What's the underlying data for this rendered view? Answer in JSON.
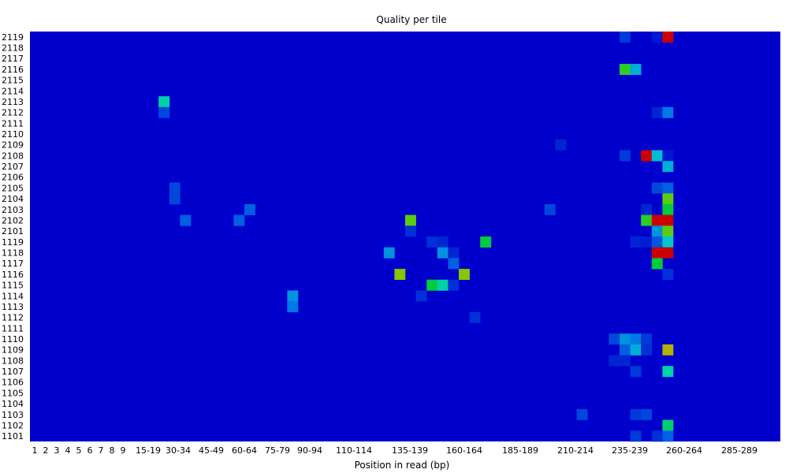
{
  "chart_data": {
    "type": "heatmap",
    "title": "Quality per tile",
    "xlabel": "Position in read (bp)",
    "ylabel": "",
    "x_tick_labels": [
      "1",
      "2",
      "3",
      "4",
      "5",
      "6",
      "7",
      "8",
      "9",
      "15-19",
      "30-34",
      "45-49",
      "60-64",
      "75-79",
      "90-94",
      "110-114",
      "135-139",
      "160-164",
      "185-189",
      "210-214",
      "235-239",
      "260-264",
      "285-289"
    ],
    "y_tick_labels": [
      "2119",
      "2118",
      "2117",
      "2116",
      "2115",
      "2114",
      "2113",
      "2112",
      "2111",
      "2110",
      "2109",
      "2108",
      "2107",
      "2106",
      "2105",
      "2104",
      "2103",
      "2102",
      "2101",
      "1119",
      "1118",
      "1117",
      "1116",
      "1115",
      "1114",
      "1113",
      "1112",
      "1111",
      "1110",
      "1109",
      "1108",
      "1107",
      "1106",
      "1105",
      "1104",
      "1103",
      "1102",
      "1101"
    ],
    "n_columns": 70,
    "value_range": [
      0,
      1
    ],
    "colors": {
      "low": "#0000cc",
      "high": "#cc0000"
    },
    "cells": [
      [
        0,
        55,
        0.12
      ],
      [
        0,
        58,
        0.05
      ],
      [
        0,
        59,
        1.0
      ],
      [
        3,
        55,
        0.6
      ],
      [
        3,
        56,
        0.35
      ],
      [
        6,
        12,
        0.45
      ],
      [
        7,
        12,
        0.15
      ],
      [
        7,
        58,
        0.08
      ],
      [
        7,
        59,
        0.25
      ],
      [
        10,
        49,
        0.08
      ],
      [
        11,
        55,
        0.12
      ],
      [
        11,
        57,
        1.0
      ],
      [
        11,
        58,
        0.38
      ],
      [
        11,
        59,
        0.05
      ],
      [
        12,
        59,
        0.35
      ],
      [
        14,
        13,
        0.15
      ],
      [
        14,
        58,
        0.15
      ],
      [
        14,
        59,
        0.2
      ],
      [
        15,
        13,
        0.15
      ],
      [
        15,
        59,
        0.65
      ],
      [
        16,
        20,
        0.2
      ],
      [
        16,
        48,
        0.15
      ],
      [
        16,
        57,
        0.08
      ],
      [
        16,
        59,
        0.55
      ],
      [
        17,
        14,
        0.2
      ],
      [
        17,
        19,
        0.2
      ],
      [
        17,
        35,
        0.65
      ],
      [
        17,
        57,
        0.6
      ],
      [
        17,
        58,
        1.0
      ],
      [
        17,
        59,
        1.0
      ],
      [
        18,
        35,
        0.1
      ],
      [
        18,
        58,
        0.3
      ],
      [
        18,
        59,
        0.65
      ],
      [
        19,
        37,
        0.1
      ],
      [
        19,
        38,
        0.08
      ],
      [
        19,
        42,
        0.55
      ],
      [
        19,
        56,
        0.08
      ],
      [
        19,
        57,
        0.06
      ],
      [
        19,
        58,
        0.18
      ],
      [
        19,
        59,
        0.4
      ],
      [
        20,
        33,
        0.3
      ],
      [
        20,
        38,
        0.3
      ],
      [
        20,
        39,
        0.08
      ],
      [
        20,
        58,
        1.0
      ],
      [
        20,
        59,
        1.0
      ],
      [
        21,
        39,
        0.2
      ],
      [
        21,
        58,
        0.55
      ],
      [
        22,
        34,
        0.7
      ],
      [
        22,
        40,
        0.7
      ],
      [
        22,
        59,
        0.1
      ],
      [
        23,
        37,
        0.55
      ],
      [
        23,
        38,
        0.45
      ],
      [
        23,
        39,
        0.1
      ],
      [
        24,
        24,
        0.3
      ],
      [
        24,
        36,
        0.1
      ],
      [
        25,
        24,
        0.25
      ],
      [
        26,
        41,
        0.1
      ],
      [
        28,
        54,
        0.15
      ],
      [
        28,
        55,
        0.3
      ],
      [
        28,
        56,
        0.25
      ],
      [
        28,
        57,
        0.12
      ],
      [
        29,
        55,
        0.2
      ],
      [
        29,
        56,
        0.35
      ],
      [
        29,
        57,
        0.1
      ],
      [
        29,
        59,
        0.75
      ],
      [
        30,
        54,
        0.08
      ],
      [
        30,
        55,
        0.08
      ],
      [
        31,
        56,
        0.12
      ],
      [
        31,
        59,
        0.45
      ],
      [
        35,
        51,
        0.15
      ],
      [
        35,
        56,
        0.12
      ],
      [
        35,
        57,
        0.15
      ],
      [
        36,
        59,
        0.5
      ],
      [
        37,
        59,
        0.2
      ],
      [
        37,
        58,
        0.1
      ],
      [
        37,
        56,
        0.12
      ]
    ]
  }
}
